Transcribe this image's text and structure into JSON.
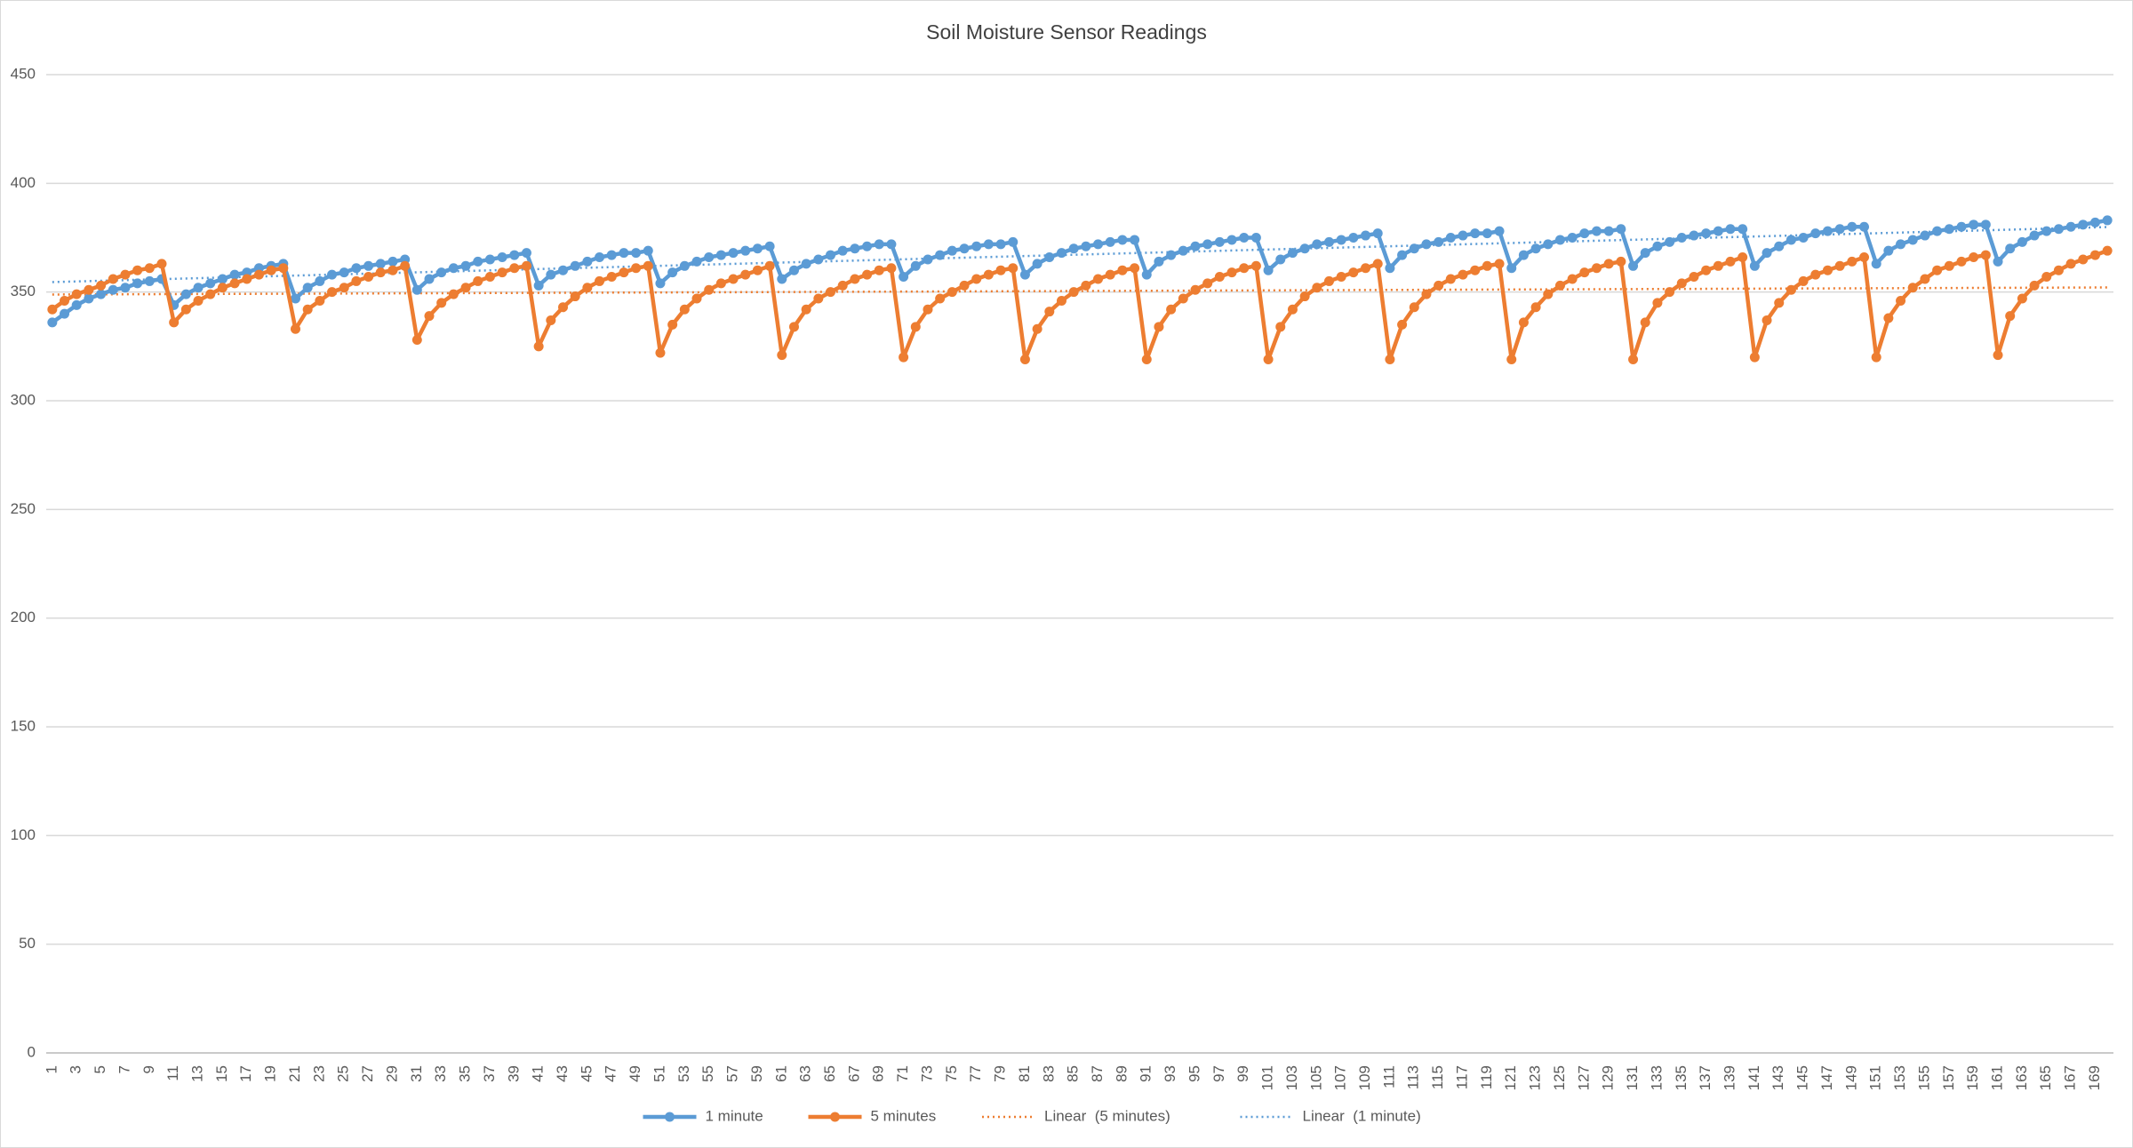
{
  "chart_data": {
    "type": "line",
    "title": "Soil Moisture Sensor Readings",
    "categories": [
      1,
      null,
      3,
      null,
      5,
      null,
      7,
      null,
      9,
      null,
      11,
      null,
      13,
      null,
      15,
      null,
      17,
      null,
      19,
      null,
      21,
      null,
      23,
      null,
      25,
      null,
      27,
      null,
      29,
      null,
      31,
      null,
      33,
      null,
      35,
      null,
      37,
      null,
      39,
      null,
      41,
      null,
      43,
      null,
      45,
      null,
      47,
      null,
      49,
      null,
      51,
      null,
      53,
      null,
      55,
      null,
      57,
      null,
      59,
      null,
      61,
      null,
      63,
      null,
      65,
      null,
      67,
      null,
      69,
      null,
      71,
      null,
      73,
      null,
      75,
      null,
      77,
      null,
      79,
      null,
      81,
      null,
      83,
      null,
      85,
      null,
      87,
      null,
      89,
      null,
      91,
      null,
      93,
      null,
      95,
      null,
      97,
      null,
      99,
      null,
      101,
      null,
      103,
      null,
      105,
      null,
      107,
      null,
      109,
      null,
      111,
      null,
      113,
      null,
      115,
      null,
      117,
      null,
      119,
      null,
      121,
      null,
      123,
      null,
      125,
      null,
      127,
      null,
      129,
      null,
      131,
      null,
      133,
      null,
      135,
      null,
      137,
      null,
      139,
      null,
      141,
      null,
      143,
      null,
      145,
      null,
      147,
      null,
      149,
      null,
      151,
      null,
      153,
      null,
      155,
      null,
      157,
      null,
      159,
      null,
      161,
      null,
      163,
      null,
      165,
      null,
      167,
      null,
      169,
      null
    ],
    "series": [
      {
        "name": "1 minute",
        "color": "#5b9bd5",
        "values": [
          336,
          340,
          344,
          347,
          349,
          351,
          352,
          354,
          355,
          356,
          344,
          349,
          352,
          354,
          356,
          358,
          359,
          361,
          362,
          363,
          347,
          352,
          355,
          358,
          359,
          361,
          362,
          363,
          364,
          365,
          351,
          356,
          359,
          361,
          362,
          364,
          365,
          366,
          367,
          368,
          353,
          358,
          360,
          362,
          364,
          366,
          367,
          368,
          368,
          369,
          354,
          359,
          362,
          364,
          366,
          367,
          368,
          369,
          370,
          371,
          356,
          360,
          363,
          365,
          367,
          369,
          370,
          371,
          372,
          372,
          357,
          362,
          365,
          367,
          369,
          370,
          371,
          372,
          372,
          373,
          358,
          363,
          366,
          368,
          370,
          371,
          372,
          373,
          374,
          374,
          358,
          364,
          367,
          369,
          371,
          372,
          373,
          374,
          375,
          375,
          360,
          365,
          368,
          370,
          372,
          373,
          374,
          375,
          376,
          377,
          361,
          367,
          370,
          372,
          373,
          375,
          376,
          377,
          377,
          378,
          361,
          367,
          370,
          372,
          374,
          375,
          377,
          378,
          378,
          379,
          362,
          368,
          371,
          373,
          375,
          376,
          377,
          378,
          379,
          379,
          362,
          368,
          371,
          374,
          375,
          377,
          378,
          379,
          380,
          380,
          363,
          369,
          372,
          374,
          376,
          378,
          379,
          380,
          381,
          381,
          364,
          370,
          373,
          376,
          378,
          379,
          380,
          381,
          382,
          383
        ]
      },
      {
        "name": "5 minutes",
        "color": "#ed7d31",
        "values": [
          342,
          346,
          349,
          351,
          353,
          356,
          358,
          360,
          361,
          363,
          336,
          342,
          346,
          349,
          352,
          354,
          356,
          358,
          360,
          361,
          333,
          342,
          346,
          350,
          352,
          355,
          357,
          359,
          360,
          362,
          328,
          339,
          345,
          349,
          352,
          355,
          357,
          359,
          361,
          362,
          325,
          337,
          343,
          348,
          352,
          355,
          357,
          359,
          361,
          362,
          322,
          335,
          342,
          347,
          351,
          354,
          356,
          358,
          360,
          362,
          321,
          334,
          342,
          347,
          350,
          353,
          356,
          358,
          360,
          361,
          320,
          334,
          342,
          347,
          350,
          353,
          356,
          358,
          360,
          361,
          319,
          333,
          341,
          346,
          350,
          353,
          356,
          358,
          360,
          361,
          319,
          334,
          342,
          347,
          351,
          354,
          357,
          359,
          361,
          362,
          319,
          334,
          342,
          348,
          352,
          355,
          357,
          359,
          361,
          363,
          319,
          335,
          343,
          349,
          353,
          356,
          358,
          360,
          362,
          363,
          319,
          336,
          343,
          349,
          353,
          356,
          359,
          361,
          363,
          364,
          319,
          336,
          345,
          350,
          354,
          357,
          360,
          362,
          364,
          366,
          320,
          337,
          345,
          351,
          355,
          358,
          360,
          362,
          364,
          366,
          320,
          338,
          346,
          352,
          356,
          360,
          362,
          364,
          366,
          367,
          321,
          339,
          347,
          353,
          357,
          360,
          363,
          365,
          367,
          369
        ]
      }
    ],
    "trendlines": [
      {
        "name": "Linear  (5 minutes)",
        "series": 1,
        "color": "#ed7d31"
      },
      {
        "name": "Linear  (1 minute)",
        "series": 0,
        "color": "#5b9bd5"
      }
    ],
    "ylim": [
      0,
      450
    ],
    "yticks": [
      0,
      50,
      100,
      150,
      200,
      250,
      300,
      350,
      400,
      450
    ],
    "grid": true,
    "legend": "bottom"
  }
}
